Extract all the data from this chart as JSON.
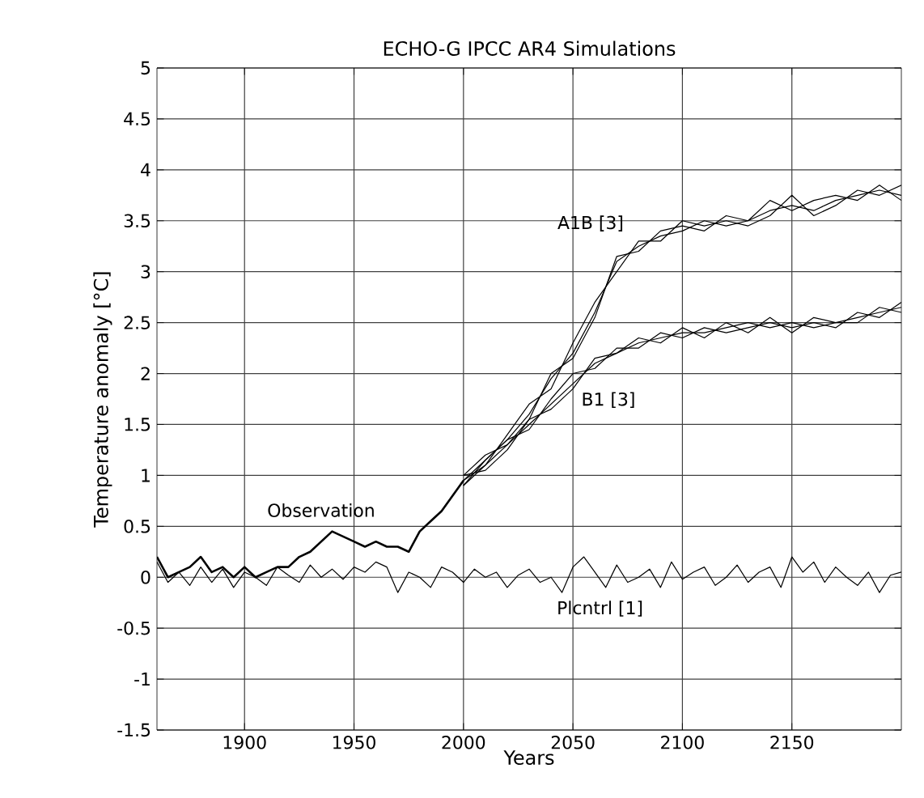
{
  "chart_data": {
    "type": "line",
    "title": "ECHO-G IPCC AR4 Simulations",
    "xlabel": "Years",
    "ylabel": "Temperature anomaly [°C]",
    "xlim": [
      1860,
      2200
    ],
    "ylim": [
      -1.5,
      5
    ],
    "xticks": [
      1900,
      1950,
      2000,
      2050,
      2100,
      2150
    ],
    "yticks": [
      -1.5,
      -1,
      -0.5,
      0,
      0.5,
      1,
      1.5,
      2,
      2.5,
      3,
      3.5,
      4,
      4.5,
      5
    ],
    "grid": true,
    "marker": "none",
    "line_style": "solid",
    "series": [
      {
        "name": "Observation",
        "color": "#000000",
        "x": [
          1860,
          1865,
          1870,
          1875,
          1880,
          1885,
          1890,
          1895,
          1900,
          1905,
          1910,
          1915,
          1920,
          1925,
          1930,
          1935,
          1940,
          1945,
          1950,
          1955,
          1960,
          1965,
          1970,
          1975,
          1980,
          1985,
          1990,
          1995,
          2000
        ],
        "values": [
          0.2,
          0.0,
          0.05,
          0.1,
          0.2,
          0.05,
          0.1,
          0.0,
          0.1,
          0.0,
          0.05,
          0.1,
          0.1,
          0.2,
          0.25,
          0.35,
          0.45,
          0.4,
          0.35,
          0.3,
          0.35,
          0.3,
          0.3,
          0.25,
          0.45,
          0.55,
          0.65,
          0.8,
          0.95
        ]
      },
      {
        "name": "Plcntrl [1]",
        "color": "#000000",
        "x": [
          1860,
          1865,
          1870,
          1875,
          1880,
          1885,
          1890,
          1895,
          1900,
          1905,
          1910,
          1915,
          1920,
          1925,
          1930,
          1935,
          1940,
          1945,
          1950,
          1955,
          1960,
          1965,
          1970,
          1975,
          1980,
          1985,
          1990,
          1995,
          2000,
          2005,
          2010,
          2015,
          2020,
          2025,
          2030,
          2035,
          2040,
          2045,
          2050,
          2055,
          2060,
          2065,
          2070,
          2075,
          2080,
          2085,
          2090,
          2095,
          2100,
          2105,
          2110,
          2115,
          2120,
          2125,
          2130,
          2135,
          2140,
          2145,
          2150,
          2155,
          2160,
          2165,
          2170,
          2175,
          2180,
          2185,
          2190,
          2195,
          2200
        ],
        "values": [
          0.15,
          -0.05,
          0.05,
          -0.08,
          0.1,
          -0.05,
          0.08,
          -0.1,
          0.05,
          0.0,
          -0.08,
          0.1,
          0.02,
          -0.05,
          0.12,
          0.0,
          0.08,
          -0.02,
          0.1,
          0.05,
          0.15,
          0.1,
          -0.15,
          0.05,
          0.0,
          -0.1,
          0.1,
          0.05,
          -0.05,
          0.08,
          0.0,
          0.05,
          -0.1,
          0.02,
          0.08,
          -0.05,
          0.0,
          -0.15,
          0.1,
          0.2,
          0.05,
          -0.1,
          0.12,
          -0.05,
          0.0,
          0.08,
          -0.1,
          0.15,
          -0.02,
          0.05,
          0.1,
          -0.08,
          0.0,
          0.12,
          -0.05,
          0.05,
          0.1,
          -0.1,
          0.2,
          0.05,
          0.15,
          -0.05,
          0.1,
          0.0,
          -0.08,
          0.05,
          -0.15,
          0.02,
          0.05
        ]
      },
      {
        "name": "A1B [3]",
        "color": "#000000",
        "x": [
          2000,
          2010,
          2020,
          2030,
          2040,
          2050,
          2060,
          2070,
          2080,
          2090,
          2100,
          2110,
          2120,
          2130,
          2140,
          2150,
          2160,
          2170,
          2180,
          2190,
          2200
        ],
        "values": [
          0.95,
          1.15,
          1.35,
          1.6,
          1.95,
          2.2,
          2.6,
          3.1,
          3.25,
          3.35,
          3.4,
          3.5,
          3.45,
          3.5,
          3.6,
          3.65,
          3.6,
          3.7,
          3.75,
          3.8,
          3.75
        ]
      },
      {
        "color": "#000000",
        "x": [
          2000,
          2010,
          2020,
          2030,
          2040,
          2050,
          2060,
          2070,
          2080,
          2090,
          2100,
          2110,
          2120,
          2130,
          2140,
          2150,
          2160,
          2170,
          2180,
          2190,
          2200
        ],
        "values": [
          0.9,
          1.1,
          1.4,
          1.7,
          1.85,
          2.3,
          2.7,
          3.0,
          3.3,
          3.3,
          3.5,
          3.45,
          3.5,
          3.45,
          3.55,
          3.75,
          3.55,
          3.65,
          3.8,
          3.75,
          3.85
        ]
      },
      {
        "color": "#000000",
        "x": [
          2000,
          2010,
          2020,
          2030,
          2040,
          2050,
          2060,
          2070,
          2080,
          2090,
          2100,
          2110,
          2120,
          2130,
          2140,
          2150,
          2160,
          2170,
          2180,
          2190,
          2200
        ],
        "values": [
          1.0,
          1.2,
          1.3,
          1.55,
          2.0,
          2.15,
          2.55,
          3.15,
          3.2,
          3.4,
          3.45,
          3.4,
          3.55,
          3.5,
          3.7,
          3.6,
          3.7,
          3.75,
          3.7,
          3.85,
          3.7
        ]
      },
      {
        "name": "B1 [3]",
        "color": "#000000",
        "x": [
          2000,
          2010,
          2020,
          2030,
          2040,
          2050,
          2060,
          2070,
          2080,
          2090,
          2100,
          2110,
          2120,
          2130,
          2140,
          2150,
          2160,
          2170,
          2180,
          2190,
          2200
        ],
        "values": [
          0.95,
          1.1,
          1.3,
          1.5,
          1.7,
          1.9,
          2.1,
          2.2,
          2.3,
          2.35,
          2.4,
          2.4,
          2.45,
          2.5,
          2.45,
          2.5,
          2.45,
          2.5,
          2.55,
          2.6,
          2.65
        ]
      },
      {
        "color": "#000000",
        "x": [
          2000,
          2010,
          2020,
          2030,
          2040,
          2050,
          2060,
          2070,
          2080,
          2090,
          2100,
          2110,
          2120,
          2130,
          2140,
          2150,
          2160,
          2170,
          2180,
          2190,
          2200
        ],
        "values": [
          0.9,
          1.15,
          1.35,
          1.45,
          1.75,
          2.0,
          2.05,
          2.25,
          2.25,
          2.4,
          2.35,
          2.45,
          2.4,
          2.45,
          2.5,
          2.45,
          2.5,
          2.45,
          2.6,
          2.55,
          2.7
        ]
      },
      {
        "color": "#000000",
        "x": [
          2000,
          2010,
          2020,
          2030,
          2040,
          2050,
          2060,
          2070,
          2080,
          2090,
          2100,
          2110,
          2120,
          2130,
          2140,
          2150,
          2160,
          2170,
          2180,
          2190,
          2200
        ],
        "values": [
          1.0,
          1.05,
          1.25,
          1.55,
          1.65,
          1.85,
          2.15,
          2.2,
          2.35,
          2.3,
          2.45,
          2.35,
          2.5,
          2.4,
          2.55,
          2.4,
          2.55,
          2.5,
          2.5,
          2.65,
          2.6
        ]
      }
    ]
  }
}
